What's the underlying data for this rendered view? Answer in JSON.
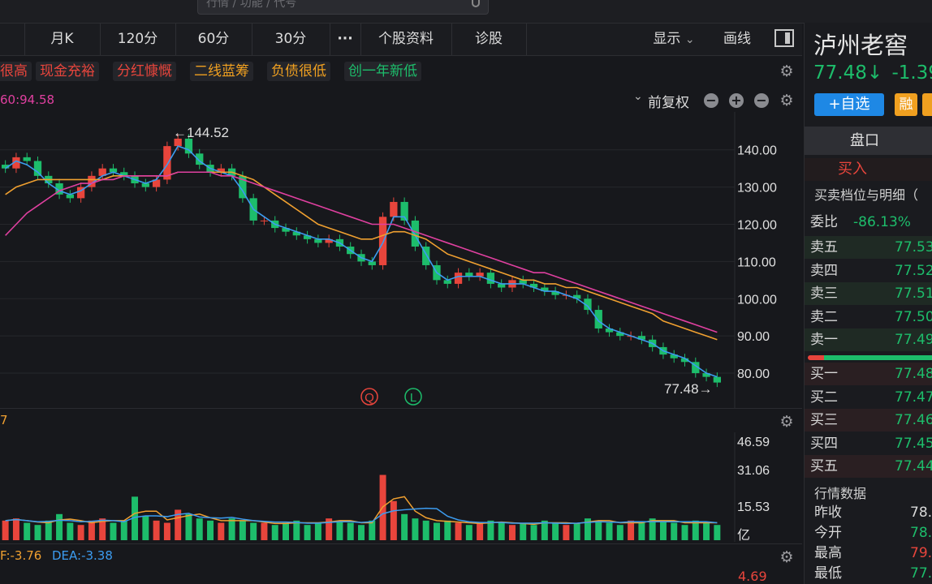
{
  "search": {
    "placeholder": "行情 / 功能 / 代号"
  },
  "toolbar": {
    "items": [
      "月K",
      "120分",
      "60分",
      "30分",
      "···",
      "个股资料",
      "诊股"
    ],
    "display": "显示",
    "draw": "画线"
  },
  "tags": [
    {
      "label": "很高",
      "color": "#e8453c"
    },
    {
      "label": "现金充裕",
      "color": "#e8453c"
    },
    {
      "label": "分红慷慨",
      "color": "#e8453c"
    },
    {
      "label": "二线蓝筹",
      "color": "#f0a020"
    },
    {
      "label": "负债很低",
      "color": "#f0a020"
    },
    {
      "label": "创一年新低",
      "color": "#1dbd6b"
    }
  ],
  "chart_head": {
    "ma_text": "60:94.58",
    "adjust": "前复权"
  },
  "main_chart": {
    "high_label": "←144.52",
    "last_label": "77.48→",
    "y_ticks": [
      "140.00",
      "130.00",
      "120.00",
      "110.00",
      "100.00",
      "90.00",
      "80.00"
    ],
    "markers": [
      "Q",
      "L"
    ]
  },
  "volume_chart": {
    "y_ticks": [
      "46.59",
      "31.06",
      "15.53",
      "亿"
    ]
  },
  "macd": {
    "dif": "F:-3.76",
    "dea": "DEA:-3.38",
    "top_tick": "4.69"
  },
  "chart_data": {
    "type": "line",
    "title": "",
    "ylim": [
      75,
      148
    ],
    "candles_close": [
      135,
      138,
      137,
      133,
      131,
      128,
      127,
      130,
      133,
      135,
      134,
      133,
      131,
      130,
      132,
      141,
      143,
      139,
      136,
      134,
      135,
      133,
      127,
      121,
      121,
      119,
      118,
      117,
      116,
      115,
      116,
      114,
      112,
      110,
      109,
      122,
      126,
      121,
      114,
      109,
      105,
      104,
      107,
      106,
      107,
      104,
      103,
      105,
      104,
      103,
      102,
      101,
      101,
      100,
      97,
      92,
      91,
      90,
      90,
      89,
      87,
      85,
      84,
      83,
      80,
      79,
      77.48
    ],
    "ma_series": [
      {
        "color": "#3c9cf0",
        "values": [
          135,
          137,
          136,
          134,
          131,
          129,
          128,
          129,
          131,
          133,
          134,
          133,
          132,
          131,
          132,
          136,
          141,
          140,
          137,
          135,
          134,
          133,
          129,
          124,
          122,
          120,
          119,
          118,
          117,
          116,
          116,
          115,
          113,
          111,
          110,
          115,
          122,
          122,
          117,
          112,
          107,
          105,
          106,
          106,
          106,
          105,
          104,
          104,
          104,
          103,
          102,
          102,
          101,
          100,
          98,
          94,
          92,
          91,
          90,
          89,
          88,
          86,
          85,
          84,
          82,
          80,
          79
        ]
      },
      {
        "color": "#f0a030",
        "values": [
          128,
          130,
          131,
          132,
          132,
          132,
          132,
          132,
          132,
          132,
          133,
          133,
          133,
          133,
          133,
          133,
          134,
          134,
          134,
          134,
          134,
          134,
          133,
          132,
          130,
          128,
          126,
          124,
          122,
          120,
          119,
          118,
          117,
          116,
          116,
          117,
          118,
          118,
          117,
          116,
          114,
          112,
          111,
          110,
          109,
          108,
          107,
          106,
          105,
          105,
          104,
          104,
          103,
          103,
          102,
          101,
          100,
          99,
          98,
          97,
          96,
          94,
          93,
          92,
          91,
          90,
          89
        ]
      },
      {
        "color": "#e040a0",
        "values": [
          117,
          120,
          123,
          125,
          127,
          129,
          130,
          131,
          131,
          132,
          132,
          133,
          133,
          133,
          133,
          133,
          134,
          134,
          134,
          134,
          133,
          133,
          132,
          131,
          130,
          129,
          128,
          127,
          126,
          125,
          124,
          123,
          122,
          121,
          120,
          120,
          120,
          119,
          118,
          117,
          116,
          115,
          114,
          113,
          112,
          111,
          110,
          109,
          108,
          107,
          107,
          106,
          105,
          104,
          103,
          102,
          101,
          100,
          99,
          98,
          97,
          96,
          95,
          94,
          93,
          92,
          91
        ]
      }
    ]
  },
  "volume_data": [
    9,
    10,
    8,
    7,
    9,
    12,
    8,
    7,
    9,
    10,
    8,
    9,
    20,
    11,
    9,
    8,
    14,
    12,
    10,
    9,
    8,
    10,
    9,
    8,
    8,
    7,
    8,
    9,
    7,
    8,
    10,
    9,
    8,
    7,
    9,
    30,
    18,
    12,
    10,
    9,
    8,
    9,
    8,
    7,
    8,
    9,
    8,
    7,
    8,
    7,
    9,
    8,
    7,
    8,
    10,
    9,
    8,
    7,
    9,
    8,
    10,
    9,
    8,
    7,
    9,
    8,
    7
  ],
  "stock": {
    "name": "泸州老窖",
    "price": "77.48↓",
    "change": "-1.39"
  },
  "right_panel": {
    "add_label": "+自选",
    "badge1": "融",
    "tab": "盘口",
    "buy_sell": "买入",
    "detail_title": "买卖档位与明细（",
    "weibi_label": "委比",
    "weibi_value": "-86.13%",
    "asks": [
      {
        "label": "卖五",
        "price": "77.53"
      },
      {
        "label": "卖四",
        "price": "77.52"
      },
      {
        "label": "卖三",
        "price": "77.51"
      },
      {
        "label": "卖二",
        "price": "77.50"
      },
      {
        "label": "卖一",
        "price": "77.49"
      }
    ],
    "bids": [
      {
        "label": "买一",
        "price": "77.48"
      },
      {
        "label": "买二",
        "price": "77.47"
      },
      {
        "label": "买三",
        "price": "77.46"
      },
      {
        "label": "买四",
        "price": "77.45"
      },
      {
        "label": "买五",
        "price": "77.44"
      }
    ],
    "quote_title": "行情数据",
    "quotes": [
      {
        "label": "昨收",
        "value": "78.",
        "color": "#d8d8d8"
      },
      {
        "label": "今开",
        "value": "78.",
        "color": "#1dbd6b"
      },
      {
        "label": "最高",
        "value": "79.",
        "color": "#e8453c"
      },
      {
        "label": "最低",
        "value": "77.",
        "color": "#1dbd6b"
      }
    ]
  }
}
